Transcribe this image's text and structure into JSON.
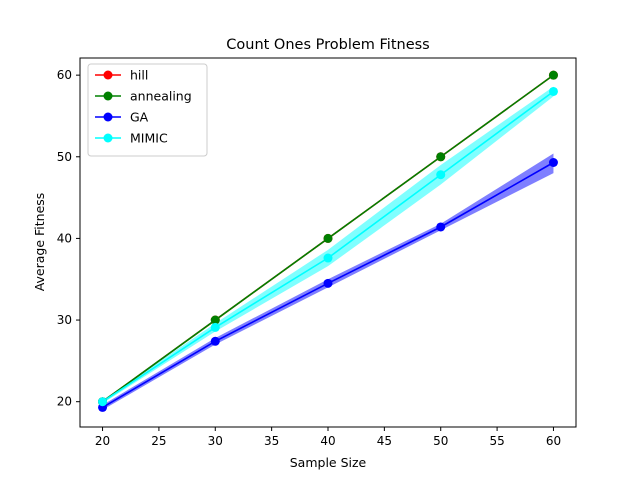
{
  "chart_data": {
    "type": "line",
    "title": "Count Ones Problem Fitness",
    "xlabel": "Sample Size",
    "ylabel": "Average Fitness",
    "xlim": [
      18,
      62
    ],
    "ylim": [
      16.9,
      62.1
    ],
    "x_ticks": [
      20,
      25,
      30,
      35,
      40,
      45,
      50,
      55,
      60
    ],
    "y_ticks": [
      20,
      30,
      40,
      50,
      60
    ],
    "grid": false,
    "legend": "top-left",
    "x": [
      20,
      30,
      40,
      50,
      60
    ],
    "series": [
      {
        "name": "hill",
        "color": "#ff0000",
        "values": [
          20,
          30,
          40,
          50,
          60
        ],
        "lower": [
          20,
          30,
          40,
          50,
          60
        ],
        "upper": [
          20,
          30,
          40,
          50,
          60
        ]
      },
      {
        "name": "annealing",
        "color": "#008000",
        "values": [
          20,
          30,
          40,
          50,
          60
        ],
        "lower": [
          20,
          30,
          40,
          50,
          60
        ],
        "upper": [
          20,
          30,
          40,
          50,
          60
        ]
      },
      {
        "name": "GA",
        "color": "#0000ff",
        "values": [
          19.3,
          27.4,
          34.5,
          41.4,
          49.3
        ],
        "lower": [
          19.0,
          27.0,
          34.0,
          41.0,
          48.0
        ],
        "upper": [
          19.6,
          27.8,
          35.0,
          41.8,
          50.4
        ]
      },
      {
        "name": "MIMIC",
        "color": "#00ffff",
        "values": [
          20.0,
          29.1,
          37.6,
          47.8,
          58.0
        ],
        "lower": [
          19.8,
          28.6,
          36.6,
          46.6,
          57.4
        ],
        "upper": [
          20.2,
          29.6,
          38.6,
          49.0,
          58.6
        ]
      }
    ]
  }
}
